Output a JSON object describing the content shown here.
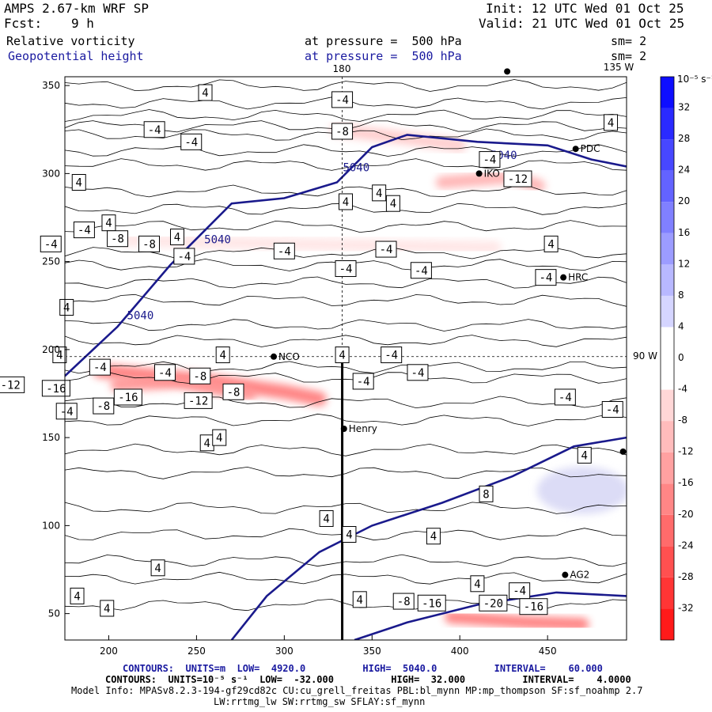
{
  "header": {
    "model": "AMPS 2.67-km WRF SP",
    "init": "Init: 12 UTC Wed 01 Oct 25",
    "fcst_label": "Fcst:",
    "fcst_value": "9 h",
    "valid": "Valid: 21 UTC Wed 01 Oct 25",
    "field1": "Relative vorticity",
    "field1_level": "at pressure =  500 hPa",
    "field1_sm": "sm= 2",
    "field2": "Geopotential height",
    "field2_level": "at pressure =  500 hPa",
    "field2_sm": "sm= 2"
  },
  "top_ticks": {
    "lon180": "180",
    "lon135w": "135 W"
  },
  "right_tick": "90 W",
  "footer": {
    "line1": "CONTOURS:  UNITS=m  LOW=  4920.0          HIGH=  5040.0          INTERVAL=    60.000",
    "line2": "CONTOURS:  UNITS=10⁻⁵ s⁻¹  LOW=  -32.000          HIGH=  32.000          INTERVAL=    4.0000",
    "line3": "Model Info: MPASv8.2.3-194-gf29cd82c CU:cu_grell_freitas PBL:bl_mynn MP:mp_thompson SF:sf_noahmp 2.7",
    "line4": "LW:rrtmg_lw SW:rrtmg_sw SFLAY:sf_mynn"
  },
  "chart_data": {
    "type": "contour",
    "title": "Relative vorticity / Geopotential height at 500 hPa",
    "xlim": [
      175,
      495
    ],
    "ylim": [
      35,
      355
    ],
    "x_ticks": [
      200,
      250,
      300,
      350,
      400,
      450
    ],
    "y_ticks": [
      50,
      100,
      150,
      200,
      250,
      300,
      350
    ],
    "colorbar": {
      "units_label": "10⁻⁵ s⁻¹",
      "levels": [
        -36,
        -32,
        -28,
        -24,
        -20,
        -16,
        -12,
        -8,
        -4,
        0,
        4,
        8,
        12,
        16,
        20,
        24,
        28,
        32,
        36
      ],
      "tick_labels": [
        "32",
        "28",
        "24",
        "20",
        "16",
        "12",
        "8",
        "4",
        "0",
        "-4",
        "-8",
        "-12",
        "-16",
        "-20",
        "-24",
        "-28",
        "-32"
      ]
    },
    "vorticity_shading": [
      {
        "value": -20,
        "band": [
          [
            195,
            188
          ],
          [
            250,
            183
          ],
          [
            300,
            176
          ],
          [
            320,
            172
          ]
        ]
      },
      {
        "value": -16,
        "band": [
          [
            205,
            180
          ],
          [
            240,
            182
          ],
          [
            280,
            175
          ]
        ]
      },
      {
        "value": -20,
        "band": [
          [
            395,
            48
          ],
          [
            440,
            45
          ],
          [
            470,
            44
          ]
        ]
      },
      {
        "value": -12,
        "band": [
          [
            390,
            295
          ],
          [
            430,
            298
          ],
          [
            445,
            293
          ]
        ]
      },
      {
        "value": -8,
        "band": [
          [
            330,
            325
          ],
          [
            370,
            320
          ],
          [
            400,
            316
          ]
        ]
      },
      {
        "value": -4,
        "band": [
          [
            210,
            262
          ],
          [
            300,
            260
          ],
          [
            420,
            258
          ]
        ]
      }
    ],
    "height_contours": [
      {
        "value": 5040,
        "points": [
          [
            175,
            185
          ],
          [
            205,
            213
          ],
          [
            235,
            248
          ],
          [
            270,
            283
          ],
          [
            300,
            286
          ],
          [
            330,
            295
          ],
          [
            350,
            315
          ],
          [
            370,
            322
          ],
          [
            410,
            318
          ],
          [
            450,
            316
          ],
          [
            475,
            308
          ],
          [
            495,
            304
          ]
        ]
      },
      {
        "value": 4980,
        "points": [
          [
            270,
            35
          ],
          [
            290,
            60
          ],
          [
            320,
            85
          ],
          [
            350,
            100
          ],
          [
            390,
            113
          ],
          [
            430,
            128
          ],
          [
            465,
            145
          ],
          [
            495,
            150
          ]
        ]
      },
      {
        "value": 4920,
        "points": [
          [
            340,
            35
          ],
          [
            370,
            45
          ],
          [
            410,
            55
          ],
          [
            455,
            62
          ],
          [
            495,
            60
          ]
        ]
      }
    ],
    "contour_labels": [
      {
        "x": 255,
        "y": 346,
        "text": "4"
      },
      {
        "x": 333,
        "y": 342,
        "text": "-4"
      },
      {
        "x": 226,
        "y": 325,
        "text": "-4"
      },
      {
        "x": 333,
        "y": 324,
        "text": "-8"
      },
      {
        "x": 247,
        "y": 318,
        "text": "-4"
      },
      {
        "x": 425,
        "y": 311,
        "text": "5040"
      },
      {
        "x": 341,
        "y": 304,
        "text": "5040"
      },
      {
        "x": 486,
        "y": 329,
        "text": "4"
      },
      {
        "x": 417,
        "y": 308,
        "text": "-4"
      },
      {
        "x": 433,
        "y": 297,
        "text": "-12"
      },
      {
        "x": 183,
        "y": 295,
        "text": "4"
      },
      {
        "x": 200,
        "y": 272,
        "text": "4"
      },
      {
        "x": 335,
        "y": 284,
        "text": "4"
      },
      {
        "x": 354,
        "y": 289,
        "text": "4"
      },
      {
        "x": 362,
        "y": 283,
        "text": "4"
      },
      {
        "x": 186,
        "y": 268,
        "text": "-4"
      },
      {
        "x": 205,
        "y": 263,
        "text": "-8"
      },
      {
        "x": 223,
        "y": 260,
        "text": "-8"
      },
      {
        "x": 239,
        "y": 264,
        "text": "4"
      },
      {
        "x": 262,
        "y": 263,
        "text": "5040"
      },
      {
        "x": 167,
        "y": 260,
        "text": "-4"
      },
      {
        "x": 243,
        "y": 253,
        "text": "-4"
      },
      {
        "x": 300,
        "y": 256,
        "text": "-4"
      },
      {
        "x": 358,
        "y": 257,
        "text": "-4"
      },
      {
        "x": 452,
        "y": 260,
        "text": "4"
      },
      {
        "x": 335,
        "y": 246,
        "text": "-4"
      },
      {
        "x": 378,
        "y": 245,
        "text": "-4"
      },
      {
        "x": 449,
        "y": 241,
        "text": "-4"
      },
      {
        "x": 176,
        "y": 224,
        "text": "4"
      },
      {
        "x": 218,
        "y": 220,
        "text": "5040"
      },
      {
        "x": 172,
        "y": 197,
        "text": "4"
      },
      {
        "x": 265,
        "y": 197,
        "text": "4"
      },
      {
        "x": 333,
        "y": 197,
        "text": "4"
      },
      {
        "x": 195,
        "y": 190,
        "text": "-4"
      },
      {
        "x": 252,
        "y": 185,
        "text": "-8"
      },
      {
        "x": 361,
        "y": 197,
        "text": "-4"
      },
      {
        "x": 376,
        "y": 187,
        "text": "-4"
      },
      {
        "x": 144,
        "y": 180,
        "text": "-12"
      },
      {
        "x": 170,
        "y": 178,
        "text": "-16"
      },
      {
        "x": 211,
        "y": 173,
        "text": "-16"
      },
      {
        "x": 251,
        "y": 171,
        "text": "-12"
      },
      {
        "x": 271,
        "y": 176,
        "text": "-8"
      },
      {
        "x": 232,
        "y": 187,
        "text": "-4"
      },
      {
        "x": 345,
        "y": 182,
        "text": "-4"
      },
      {
        "x": 197,
        "y": 168,
        "text": "-8"
      },
      {
        "x": 176,
        "y": 165,
        "text": "-4"
      },
      {
        "x": 460,
        "y": 173,
        "text": "-4"
      },
      {
        "x": 487,
        "y": 166,
        "text": "-4"
      },
      {
        "x": 256,
        "y": 147,
        "text": "4"
      },
      {
        "x": 263,
        "y": 150,
        "text": "4"
      },
      {
        "x": 471,
        "y": 140,
        "text": "4"
      },
      {
        "x": 324,
        "y": 104,
        "text": "4"
      },
      {
        "x": 337,
        "y": 95,
        "text": "4"
      },
      {
        "x": 385,
        "y": 94,
        "text": "4"
      },
      {
        "x": 415,
        "y": 118,
        "text": "8"
      },
      {
        "x": 228,
        "y": 76,
        "text": "4"
      },
      {
        "x": 182,
        "y": 60,
        "text": "4"
      },
      {
        "x": 343,
        "y": 58,
        "text": "4"
      },
      {
        "x": 410,
        "y": 67,
        "text": "4"
      },
      {
        "x": 434,
        "y": 63,
        "text": "-4"
      },
      {
        "x": 368,
        "y": 57,
        "text": "-8"
      },
      {
        "x": 384,
        "y": 56,
        "text": "-16"
      },
      {
        "x": 419,
        "y": 56,
        "text": "-20"
      },
      {
        "x": 442,
        "y": 54,
        "text": "-16"
      },
      {
        "x": 199,
        "y": 53,
        "text": "4"
      }
    ],
    "stations": [
      {
        "x": 294,
        "y": 196,
        "text": "NCO"
      },
      {
        "x": 334,
        "y": 155,
        "text": "Henry"
      },
      {
        "x": 411,
        "y": 300,
        "text": "IKO"
      },
      {
        "x": 466,
        "y": 314,
        "text": "PDC"
      },
      {
        "x": 459,
        "y": 241,
        "text": "HRC"
      },
      {
        "x": 460,
        "y": 72,
        "text": "AG2"
      },
      {
        "x": 493,
        "y": 142,
        "text": ""
      },
      {
        "x": 427,
        "y": 358,
        "text": ""
      }
    ],
    "marker_point": {
      "x": 333,
      "y": 196
    },
    "section_line": {
      "x": 333,
      "from": 35,
      "to": 196
    }
  }
}
